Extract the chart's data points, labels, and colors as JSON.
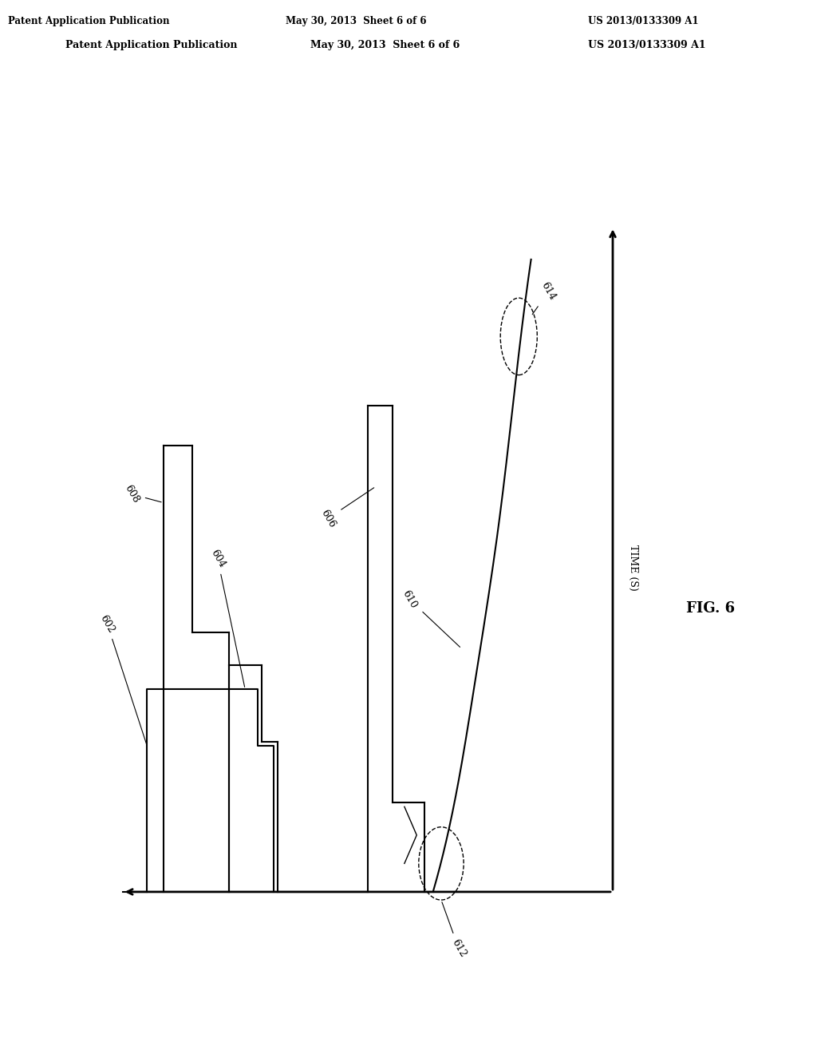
{
  "title": "",
  "header_left": "Patent Application Publication",
  "header_center": "May 30, 2013  Sheet 6 of 6",
  "header_right": "US 2013/0133309 A1",
  "fig_label": "FIG. 6",
  "time_axis_label": "TIME (S)",
  "background_color": "#ffffff",
  "line_color": "#000000",
  "label_602": "602",
  "label_604": "604",
  "label_606": "606",
  "label_608": "608",
  "label_610": "610",
  "label_612": "612",
  "label_614": "614"
}
